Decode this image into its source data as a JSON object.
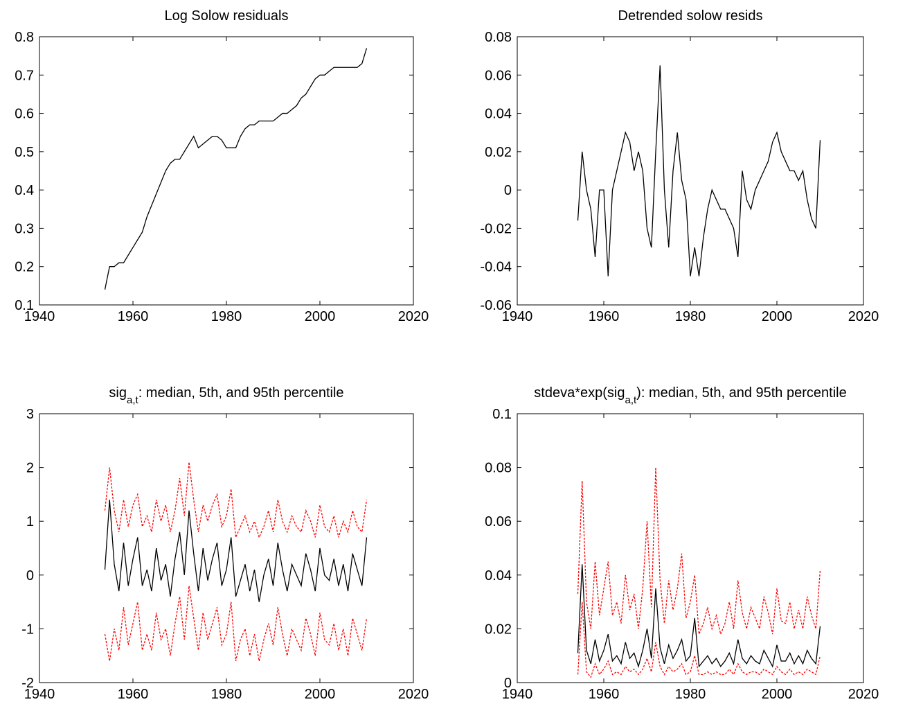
{
  "chart_data": [
    {
      "type": "line",
      "title": "Log Solow residuals",
      "x": [
        1954,
        1955,
        1956,
        1957,
        1958,
        1959,
        1960,
        1961,
        1962,
        1963,
        1964,
        1965,
        1966,
        1967,
        1968,
        1969,
        1970,
        1971,
        1972,
        1973,
        1974,
        1975,
        1976,
        1977,
        1978,
        1979,
        1980,
        1981,
        1982,
        1983,
        1984,
        1985,
        1986,
        1987,
        1988,
        1989,
        1990,
        1991,
        1992,
        1993,
        1994,
        1995,
        1996,
        1997,
        1998,
        1999,
        2000,
        2001,
        2002,
        2003,
        2004,
        2005,
        2006,
        2007,
        2008,
        2009,
        2010
      ],
      "series": [
        {
          "color": "#000000",
          "style": "solid",
          "values": [
            0.14,
            0.2,
            0.2,
            0.21,
            0.21,
            0.23,
            0.25,
            0.27,
            0.29,
            0.33,
            0.36,
            0.39,
            0.42,
            0.45,
            0.47,
            0.48,
            0.48,
            0.5,
            0.52,
            0.54,
            0.51,
            0.52,
            0.53,
            0.54,
            0.54,
            0.53,
            0.51,
            0.51,
            0.51,
            0.54,
            0.56,
            0.57,
            0.57,
            0.58,
            0.58,
            0.58,
            0.58,
            0.59,
            0.6,
            0.6,
            0.61,
            0.62,
            0.64,
            0.65,
            0.67,
            0.69,
            0.7,
            0.7,
            0.71,
            0.72,
            0.72,
            0.72,
            0.72,
            0.72,
            0.72,
            0.73,
            0.77
          ]
        }
      ],
      "xlim": [
        1940,
        2020
      ],
      "xticks": [
        1940,
        1960,
        1980,
        2000,
        2020
      ],
      "ylim": [
        0.1,
        0.8
      ],
      "yticks": [
        0.1,
        0.2,
        0.3,
        0.4,
        0.5,
        0.6,
        0.7,
        0.8
      ]
    },
    {
      "type": "line",
      "title": "Detrended solow resids",
      "x": [
        1954,
        1955,
        1956,
        1957,
        1958,
        1959,
        1960,
        1961,
        1962,
        1963,
        1964,
        1965,
        1966,
        1967,
        1968,
        1969,
        1970,
        1971,
        1972,
        1973,
        1974,
        1975,
        1976,
        1977,
        1978,
        1979,
        1980,
        1981,
        1982,
        1983,
        1984,
        1985,
        1986,
        1987,
        1988,
        1989,
        1990,
        1991,
        1992,
        1993,
        1994,
        1995,
        1996,
        1997,
        1998,
        1999,
        2000,
        2001,
        2002,
        2003,
        2004,
        2005,
        2006,
        2007,
        2008,
        2009,
        2010
      ],
      "series": [
        {
          "color": "#000000",
          "style": "solid",
          "values": [
            -0.016,
            0.02,
            0.0,
            -0.01,
            -0.035,
            0.0,
            0.0,
            -0.045,
            0.0,
            0.01,
            0.02,
            0.03,
            0.025,
            0.01,
            0.02,
            0.01,
            -0.02,
            -0.03,
            0.02,
            0.065,
            0.0,
            -0.03,
            0.01,
            0.03,
            0.005,
            -0.005,
            -0.045,
            -0.03,
            -0.045,
            -0.025,
            -0.01,
            0.0,
            -0.005,
            -0.01,
            -0.01,
            -0.015,
            -0.02,
            -0.035,
            0.01,
            -0.005,
            -0.01,
            0.0,
            0.005,
            0.01,
            0.015,
            0.025,
            0.03,
            0.02,
            0.015,
            0.01,
            0.01,
            0.005,
            0.01,
            -0.005,
            -0.015,
            -0.02,
            0.026
          ]
        }
      ],
      "xlim": [
        1940,
        2020
      ],
      "xticks": [
        1940,
        1960,
        1980,
        2000,
        2020
      ],
      "ylim": [
        -0.06,
        0.08
      ],
      "yticks": [
        -0.06,
        -0.04,
        -0.02,
        0,
        0.02,
        0.04,
        0.06,
        0.08
      ]
    },
    {
      "type": "line",
      "title_parts": [
        "sig",
        "a,t",
        ": median, 5th, and 95th percentile"
      ],
      "x": [
        1954,
        1955,
        1956,
        1957,
        1958,
        1959,
        1960,
        1961,
        1962,
        1963,
        1964,
        1965,
        1966,
        1967,
        1968,
        1969,
        1970,
        1971,
        1972,
        1973,
        1974,
        1975,
        1976,
        1977,
        1978,
        1979,
        1980,
        1981,
        1982,
        1983,
        1984,
        1985,
        1986,
        1987,
        1988,
        1989,
        1990,
        1991,
        1992,
        1993,
        1994,
        1995,
        1996,
        1997,
        1998,
        1999,
        2000,
        2001,
        2002,
        2003,
        2004,
        2005,
        2006,
        2007,
        2008,
        2009,
        2010
      ],
      "series": [
        {
          "color": "#000000",
          "style": "solid",
          "values": [
            0.1,
            1.4,
            0.2,
            -0.3,
            0.6,
            -0.2,
            0.3,
            0.7,
            -0.2,
            0.1,
            -0.3,
            0.5,
            -0.1,
            0.2,
            -0.4,
            0.3,
            0.8,
            0.0,
            1.2,
            0.4,
            -0.3,
            0.5,
            -0.1,
            0.3,
            0.6,
            -0.2,
            0.1,
            0.7,
            -0.4,
            -0.1,
            0.2,
            -0.3,
            0.1,
            -0.5,
            0.0,
            0.3,
            -0.2,
            0.6,
            0.1,
            -0.3,
            0.2,
            0.0,
            -0.2,
            0.4,
            0.1,
            -0.3,
            0.5,
            0.0,
            -0.1,
            0.3,
            -0.2,
            0.2,
            -0.3,
            0.4,
            0.1,
            -0.2,
            0.7
          ]
        },
        {
          "color": "#ff0000",
          "style": "dashed",
          "values": [
            1.2,
            2.0,
            1.2,
            0.8,
            1.4,
            0.9,
            1.3,
            1.5,
            0.9,
            1.1,
            0.8,
            1.4,
            1.0,
            1.3,
            0.8,
            1.2,
            1.8,
            1.1,
            2.1,
            1.4,
            0.8,
            1.3,
            1.0,
            1.3,
            1.5,
            0.9,
            1.1,
            1.6,
            0.7,
            0.9,
            1.1,
            0.8,
            1.0,
            0.7,
            0.9,
            1.2,
            0.8,
            1.4,
            1.0,
            0.8,
            1.1,
            0.9,
            0.8,
            1.2,
            1.0,
            0.7,
            1.3,
            0.9,
            0.8,
            1.1,
            0.7,
            1.0,
            0.8,
            1.2,
            0.9,
            0.8,
            1.4
          ]
        },
        {
          "color": "#ff0000",
          "style": "dashed",
          "values": [
            -1.1,
            -1.6,
            -1.0,
            -1.4,
            -0.6,
            -1.3,
            -0.9,
            -0.5,
            -1.4,
            -1.1,
            -1.4,
            -0.7,
            -1.2,
            -1.0,
            -1.5,
            -0.9,
            -0.4,
            -1.2,
            -0.2,
            -0.8,
            -1.4,
            -0.7,
            -1.2,
            -0.9,
            -0.6,
            -1.3,
            -1.1,
            -0.5,
            -1.6,
            -1.2,
            -1.0,
            -1.5,
            -1.1,
            -1.6,
            -1.2,
            -0.9,
            -1.3,
            -0.6,
            -1.1,
            -1.5,
            -1.0,
            -1.2,
            -1.4,
            -0.8,
            -1.1,
            -1.5,
            -0.7,
            -1.2,
            -1.3,
            -0.9,
            -1.4,
            -1.0,
            -1.5,
            -0.8,
            -1.1,
            -1.4,
            -0.8
          ]
        }
      ],
      "xlim": [
        1940,
        2020
      ],
      "xticks": [
        1940,
        1960,
        1980,
        2000,
        2020
      ],
      "ylim": [
        -2,
        3
      ],
      "yticks": [
        -2,
        -1,
        0,
        1,
        2,
        3
      ]
    },
    {
      "type": "line",
      "title_parts": [
        "stdeva*exp(sig",
        "a,t",
        "): median, 5th, and 95th percentile"
      ],
      "x": [
        1954,
        1955,
        1956,
        1957,
        1958,
        1959,
        1960,
        1961,
        1962,
        1963,
        1964,
        1965,
        1966,
        1967,
        1968,
        1969,
        1970,
        1971,
        1972,
        1973,
        1974,
        1975,
        1976,
        1977,
        1978,
        1979,
        1980,
        1981,
        1982,
        1983,
        1984,
        1985,
        1986,
        1987,
        1988,
        1989,
        1990,
        1991,
        1992,
        1993,
        1994,
        1995,
        1996,
        1997,
        1998,
        1999,
        2000,
        2001,
        2002,
        2003,
        2004,
        2005,
        2006,
        2007,
        2008,
        2009,
        2010
      ],
      "series": [
        {
          "color": "#000000",
          "style": "solid",
          "values": [
            0.011,
            0.044,
            0.012,
            0.007,
            0.016,
            0.008,
            0.012,
            0.018,
            0.008,
            0.01,
            0.007,
            0.015,
            0.009,
            0.011,
            0.006,
            0.012,
            0.02,
            0.009,
            0.035,
            0.013,
            0.007,
            0.014,
            0.009,
            0.012,
            0.016,
            0.008,
            0.01,
            0.024,
            0.006,
            0.008,
            0.01,
            0.007,
            0.009,
            0.006,
            0.008,
            0.011,
            0.007,
            0.016,
            0.009,
            0.007,
            0.01,
            0.008,
            0.007,
            0.012,
            0.009,
            0.006,
            0.014,
            0.008,
            0.008,
            0.011,
            0.007,
            0.01,
            0.007,
            0.012,
            0.009,
            0.007,
            0.021
          ]
        },
        {
          "color": "#ff0000",
          "style": "dashed",
          "values": [
            0.033,
            0.075,
            0.03,
            0.02,
            0.045,
            0.025,
            0.035,
            0.045,
            0.025,
            0.03,
            0.022,
            0.04,
            0.027,
            0.033,
            0.02,
            0.035,
            0.06,
            0.028,
            0.08,
            0.038,
            0.022,
            0.038,
            0.027,
            0.035,
            0.048,
            0.024,
            0.03,
            0.04,
            0.018,
            0.022,
            0.028,
            0.02,
            0.025,
            0.018,
            0.022,
            0.03,
            0.02,
            0.038,
            0.026,
            0.02,
            0.028,
            0.024,
            0.02,
            0.032,
            0.026,
            0.018,
            0.035,
            0.023,
            0.022,
            0.03,
            0.02,
            0.027,
            0.02,
            0.032,
            0.025,
            0.02,
            0.042
          ]
        },
        {
          "color": "#ff0000",
          "style": "dashed",
          "values": [
            0.003,
            0.03,
            0.004,
            0.002,
            0.007,
            0.003,
            0.005,
            0.008,
            0.003,
            0.004,
            0.003,
            0.006,
            0.004,
            0.005,
            0.003,
            0.005,
            0.009,
            0.004,
            0.015,
            0.006,
            0.003,
            0.006,
            0.004,
            0.005,
            0.007,
            0.003,
            0.004,
            0.01,
            0.003,
            0.003,
            0.004,
            0.003,
            0.004,
            0.003,
            0.003,
            0.005,
            0.003,
            0.007,
            0.004,
            0.003,
            0.004,
            0.004,
            0.003,
            0.005,
            0.004,
            0.003,
            0.006,
            0.004,
            0.003,
            0.005,
            0.003,
            0.004,
            0.003,
            0.005,
            0.004,
            0.003,
            0.01
          ]
        }
      ],
      "xlim": [
        1940,
        2020
      ],
      "xticks": [
        1940,
        1960,
        1980,
        2000,
        2020
      ],
      "ylim": [
        0,
        0.1
      ],
      "yticks": [
        0,
        0.02,
        0.04,
        0.06,
        0.08,
        0.1
      ]
    }
  ]
}
